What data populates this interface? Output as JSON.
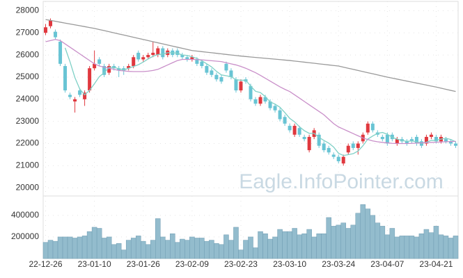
{
  "chart_data": [
    {
      "type": "candlestick",
      "categories": [
        "22-12-26",
        null,
        null,
        null,
        null,
        null,
        null,
        null,
        null,
        null,
        "23-01-10",
        null,
        null,
        null,
        null,
        null,
        null,
        null,
        null,
        null,
        "23-01-26",
        null,
        null,
        null,
        null,
        null,
        null,
        null,
        null,
        null,
        "23-02-09",
        null,
        null,
        null,
        null,
        null,
        null,
        null,
        null,
        null,
        "23-02-23",
        null,
        null,
        null,
        null,
        null,
        null,
        null,
        null,
        null,
        "23-03-10",
        null,
        null,
        null,
        null,
        null,
        null,
        null,
        null,
        null,
        "23-03-24",
        null,
        null,
        null,
        null,
        null,
        null,
        null,
        null,
        null,
        "23-04-07",
        null,
        null,
        null,
        null,
        null,
        null,
        null,
        null,
        null,
        "23-04-21",
        null,
        null,
        null,
        null
      ],
      "open": [
        27000,
        27300,
        27050,
        26600,
        25500,
        24200,
        23900,
        24400,
        24000,
        24400,
        25400,
        25800,
        25500,
        25200,
        25500,
        25400,
        25400,
        25400,
        25500,
        26100,
        25800,
        25900,
        26000,
        26000,
        26300,
        26000,
        26200,
        26200,
        26000,
        25900,
        25800,
        25800,
        25700,
        25500,
        25300,
        25100,
        25000,
        25600,
        25300,
        24900,
        24400,
        24900,
        24600,
        24000,
        23800,
        24100,
        23900,
        23700,
        23500,
        23200,
        22800,
        22400,
        22700,
        22300,
        21700,
        22300,
        22400,
        22000,
        21800,
        21500,
        21400,
        21100,
        21600,
        22000,
        21800,
        22100,
        22500,
        22900,
        22500,
        22300,
        22400,
        22400,
        22000,
        22200,
        22100,
        22200,
        22300,
        22100,
        22000,
        22300,
        22300,
        22100,
        22200,
        22100,
        22000
      ],
      "high": [
        27400,
        27650,
        27150,
        26700,
        25600,
        24300,
        24100,
        24500,
        24400,
        25500,
        26200,
        25900,
        25600,
        25600,
        25600,
        25500,
        25500,
        25600,
        26000,
        26200,
        26000,
        26100,
        26600,
        26400,
        26400,
        26300,
        26300,
        26300,
        26100,
        26000,
        26000,
        25900,
        25800,
        25600,
        25400,
        25200,
        25100,
        25700,
        25400,
        25000,
        24900,
        25000,
        24700,
        24100,
        24200,
        24200,
        24000,
        23800,
        23600,
        23300,
        22900,
        22900,
        22800,
        22400,
        22400,
        22700,
        22500,
        22100,
        21900,
        21600,
        21500,
        21500,
        22000,
        22100,
        22100,
        22500,
        23000,
        23000,
        22600,
        22400,
        22500,
        22500,
        22300,
        22300,
        22200,
        22300,
        22400,
        22200,
        22400,
        22500,
        22400,
        22400,
        22300,
        22200,
        22100
      ],
      "low": [
        26900,
        27200,
        26700,
        25500,
        24300,
        24000,
        23400,
        24100,
        23700,
        24300,
        25300,
        25500,
        25000,
        25100,
        25300,
        25000,
        25100,
        25300,
        25400,
        25700,
        25700,
        25800,
        25900,
        25900,
        25800,
        25900,
        25900,
        25900,
        25800,
        25700,
        25700,
        25500,
        25400,
        25100,
        25000,
        24800,
        24700,
        25200,
        24900,
        24300,
        24300,
        24700,
        23900,
        23700,
        23700,
        23800,
        23500,
        23400,
        23000,
        22800,
        22500,
        22300,
        22300,
        22100,
        21600,
        22200,
        21800,
        21600,
        21500,
        21300,
        21100,
        21000,
        21500,
        21700,
        21500,
        22000,
        22400,
        22500,
        22300,
        22100,
        21900,
        22100,
        21900,
        22000,
        21900,
        22000,
        21900,
        21800,
        21900,
        22200,
        22000,
        22000,
        22000,
        21900,
        21800
      ],
      "close": [
        27250,
        27550,
        26800,
        25600,
        24400,
        24100,
        24000,
        24200,
        24300,
        25400,
        25600,
        25600,
        25100,
        25500,
        25400,
        25300,
        25300,
        25500,
        25900,
        25800,
        25900,
        26000,
        26100,
        26300,
        25900,
        26200,
        26000,
        26000,
        25900,
        25800,
        25900,
        25600,
        25500,
        25200,
        25100,
        24900,
        24800,
        25300,
        25000,
        24400,
        24800,
        24800,
        24000,
        23800,
        24100,
        23900,
        23600,
        23500,
        23100,
        22900,
        22600,
        22800,
        22400,
        22200,
        22300,
        22600,
        21900,
        21700,
        21600,
        21400,
        21200,
        21400,
        21900,
        21800,
        22000,
        22400,
        22900,
        22600,
        22400,
        22200,
        22000,
        22200,
        22200,
        22100,
        22000,
        22100,
        22000,
        21900,
        22300,
        22400,
        22100,
        22300,
        22100,
        22000,
        21900
      ],
      "up_color": "#e0383e",
      "down_color": "#68c4d4",
      "series": [
        {
          "color": "#7fd0c6",
          "values": [
            null,
            null,
            null,
            null,
            26320,
            25690,
            24980,
            24460,
            24200,
            24400,
            24700,
            25020,
            25200,
            25440,
            25440,
            25380,
            25320,
            25400,
            25480,
            25560,
            25680,
            25820,
            25940,
            26020,
            26040,
            26100,
            26100,
            26080,
            26000,
            25980,
            25920,
            25840,
            25740,
            25600,
            25460,
            25260,
            25100,
            25060,
            25020,
            24880,
            24860,
            24860,
            24600,
            24360,
            24300,
            24120,
            23880,
            23780,
            23640,
            23400,
            23140,
            22980,
            22760,
            22580,
            22460,
            22460,
            22280,
            22140,
            22020,
            21840,
            21560,
            21460,
            21500,
            21540,
            21660,
            21900,
            22200,
            22340,
            22460,
            22500,
            22420,
            22280,
            22200,
            22140,
            22100,
            22120,
            22080,
            22020,
            22060,
            22140,
            22140,
            22200,
            22240,
            22180,
            22080
          ]
        },
        {
          "color": "#c98fc9",
          "values": [
            26600,
            26650,
            26700,
            26650,
            26500,
            26350,
            26200,
            26050,
            25900,
            25750,
            25600,
            25500,
            25450,
            25400,
            25350,
            25300,
            25280,
            25260,
            25250,
            25250,
            25250,
            25270,
            25300,
            25350,
            25450,
            25550,
            25650,
            25750,
            25800,
            25800,
            25800,
            25790,
            25780,
            25760,
            25740,
            25720,
            25700,
            25650,
            25600,
            25550,
            25480,
            25400,
            25300,
            25200,
            25080,
            24950,
            24820,
            24690,
            24560,
            24450,
            24350,
            24200,
            24050,
            23900,
            23750,
            23600,
            23450,
            23300,
            23100,
            22900,
            22750,
            22650,
            22550,
            22450,
            22350,
            22250,
            22180,
            22120,
            22080,
            22050,
            22030,
            22010,
            22000,
            22000,
            22000,
            22010,
            22020,
            22030,
            22040,
            22050,
            22060,
            22070,
            22080,
            22090,
            22100
          ]
        },
        {
          "color": "#999999",
          "values": [
            27600,
            27560,
            27520,
            27480,
            27440,
            27400,
            27360,
            27320,
            27280,
            27240,
            27200,
            27150,
            27100,
            27050,
            27000,
            26950,
            26900,
            26850,
            26800,
            26750,
            26700,
            26650,
            26600,
            26550,
            26500,
            26450,
            26400,
            26350,
            26300,
            26250,
            26200,
            26175,
            26150,
            26125,
            26100,
            26075,
            26050,
            26025,
            26000,
            25975,
            25950,
            25930,
            25910,
            25890,
            25870,
            25850,
            25830,
            25810,
            25790,
            25770,
            25750,
            25725,
            25700,
            25675,
            25650,
            25625,
            25600,
            25575,
            25550,
            25525,
            25500,
            25450,
            25400,
            25350,
            25300,
            25250,
            25200,
            25150,
            25100,
            25050,
            25000,
            24955,
            24910,
            24865,
            24820,
            24775,
            24730,
            24685,
            24640,
            24595,
            24550,
            24500,
            24450,
            24400,
            24350
          ]
        }
      ],
      "ylim": [
        19600,
        28200
      ],
      "yticks": [
        20000,
        21000,
        22000,
        23000,
        24000,
        25000,
        26000,
        27000,
        28000
      ],
      "grid": true,
      "watermark": "Eagle.InfoPointer.com"
    },
    {
      "type": "bar",
      "values": [
        150000,
        170000,
        160000,
        200000,
        200000,
        200000,
        190000,
        200000,
        210000,
        250000,
        290000,
        280000,
        190000,
        200000,
        130000,
        140000,
        80000,
        170000,
        190000,
        210000,
        160000,
        130000,
        170000,
        370000,
        200000,
        170000,
        230000,
        150000,
        180000,
        170000,
        200000,
        190000,
        190000,
        160000,
        170000,
        140000,
        130000,
        220000,
        170000,
        290000,
        80000,
        170000,
        200000,
        100000,
        250000,
        230000,
        180000,
        200000,
        270000,
        250000,
        250000,
        280000,
        220000,
        230000,
        270000,
        200000,
        230000,
        230000,
        380000,
        300000,
        310000,
        330000,
        280000,
        310000,
        420000,
        500000,
        460000,
        400000,
        330000,
        300000,
        220000,
        280000,
        200000,
        210000,
        210000,
        210000,
        200000,
        230000,
        270000,
        240000,
        300000,
        220000,
        210000,
        190000,
        210000
      ],
      "color": "#93bccd",
      "ylim": [
        0,
        560000
      ],
      "yticks": [
        200000,
        400000
      ],
      "grid": true
    }
  ]
}
